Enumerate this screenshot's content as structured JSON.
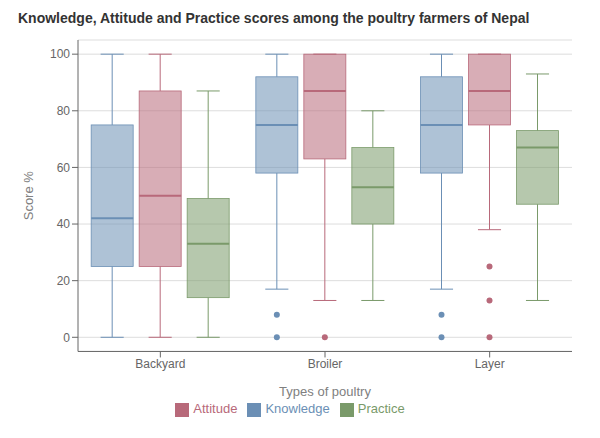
{
  "chart_data": {
    "type": "box",
    "title": "Knowledge, Attitude and Practice scores among the poultry farmers of Nepal",
    "xlabel": "Types of poultry",
    "ylabel": "Score %",
    "categories": [
      "Backyard",
      "Broiler",
      "Layer"
    ],
    "series": [
      {
        "name": "Knowledge",
        "color": "#6b8fb5",
        "boxes": [
          {
            "whislo": 0,
            "q1": 25,
            "med": 42,
            "q3": 75,
            "whishi": 100,
            "fliers": []
          },
          {
            "whislo": 17,
            "q1": 58,
            "med": 75,
            "q3": 92,
            "whishi": 100,
            "fliers": [
              8,
              0
            ]
          },
          {
            "whislo": 17,
            "q1": 58,
            "med": 75,
            "q3": 92,
            "whishi": 100,
            "fliers": [
              8,
              0
            ]
          }
        ]
      },
      {
        "name": "Attitude",
        "color": "#b8697a",
        "boxes": [
          {
            "whislo": 0,
            "q1": 25,
            "med": 50,
            "q3": 87,
            "whishi": 100,
            "fliers": []
          },
          {
            "whislo": 13,
            "q1": 63,
            "med": 87,
            "q3": 100,
            "whishi": 100,
            "fliers": [
              0
            ]
          },
          {
            "whislo": 38,
            "q1": 75,
            "med": 87,
            "q3": 100,
            "whishi": 100,
            "fliers": [
              25,
              13,
              0
            ]
          }
        ]
      },
      {
        "name": "Practice",
        "color": "#7a9a6a",
        "boxes": [
          {
            "whislo": 0,
            "q1": 14,
            "med": 33,
            "q3": 49,
            "whishi": 87,
            "fliers": []
          },
          {
            "whislo": 13,
            "q1": 40,
            "med": 53,
            "q3": 67,
            "whishi": 80,
            "fliers": []
          },
          {
            "whislo": 13,
            "q1": 47,
            "med": 67,
            "q3": 73,
            "whishi": 93,
            "fliers": []
          }
        ]
      }
    ],
    "ylim": [
      -5,
      105
    ],
    "yticks": [
      0,
      20,
      40,
      60,
      80,
      100
    ],
    "grid": true,
    "legend": "bottom"
  }
}
